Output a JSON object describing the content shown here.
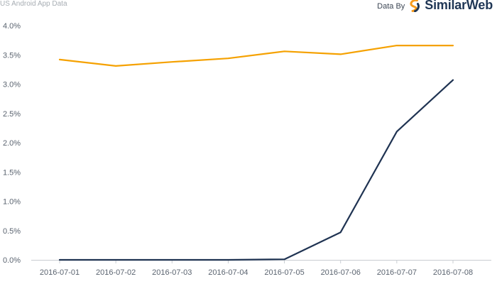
{
  "header": {
    "subtitle": "US Android App Data",
    "brand_prefix": "Data By",
    "brand_name": "SimilarWeb"
  },
  "colors": {
    "series_orange": "#f5a100",
    "series_navy": "#1f3352",
    "axis": "#c9cdd2",
    "brand_orange": "#f89b1c",
    "brand_navy": "#1f3655"
  },
  "chart_data": {
    "type": "line",
    "x": [
      "2016-07-01",
      "2016-07-02",
      "2016-07-03",
      "2016-07-04",
      "2016-07-05",
      "2016-07-06",
      "2016-07-07",
      "2016-07-08"
    ],
    "series": [
      {
        "color": "#f5a100",
        "values": [
          3.42,
          3.31,
          3.38,
          3.44,
          3.56,
          3.51,
          3.66,
          3.66
        ]
      },
      {
        "color": "#1f3352",
        "values": [
          0.0,
          0.0,
          0.0,
          0.0,
          0.01,
          0.47,
          2.19,
          3.07
        ]
      }
    ],
    "ylim": [
      0,
      4
    ],
    "yticks": [
      "0.0%",
      "0.5%",
      "1.0%",
      "1.5%",
      "2.0%",
      "2.5%",
      "3.0%",
      "3.5%",
      "4.0%"
    ],
    "ytick_values": [
      0,
      0.5,
      1.0,
      1.5,
      2.0,
      2.5,
      3.0,
      3.5,
      4.0
    ],
    "xlabel": "",
    "ylabel": "",
    "grid": false,
    "legend": "none"
  }
}
